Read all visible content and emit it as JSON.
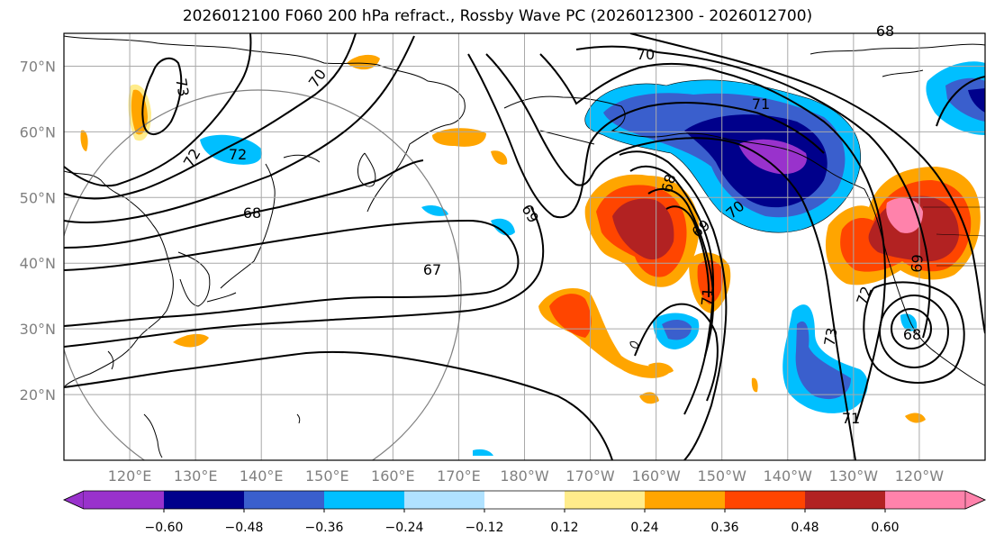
{
  "title": "2026012100 F060 200 hPa refract., Rossby Wave PC (2026012300 - 2026012700)",
  "lat_labels": [
    "70°N",
    "60°N",
    "50°N",
    "40°N",
    "30°N",
    "20°N"
  ],
  "lat_values": [
    70,
    60,
    50,
    40,
    30,
    20
  ],
  "lon_labels": [
    "120°E",
    "130°E",
    "140°E",
    "150°E",
    "160°E",
    "170°E",
    "180°W",
    "170°W",
    "160°W",
    "150°W",
    "140°W",
    "130°W",
    "120°W"
  ],
  "lon_values": [
    120,
    130,
    140,
    150,
    160,
    170,
    180,
    190,
    200,
    210,
    220,
    230,
    240
  ],
  "extent": {
    "lon_min": 110,
    "lon_max": 250,
    "lat_min": 10,
    "lat_max": 75
  },
  "colorbar": {
    "colors": [
      "#9932cc",
      "#00008b",
      "#3a5fcd",
      "#00bfff",
      "#b0e2ff",
      "#ffffff",
      "#ffec8b",
      "#ffa500",
      "#ff4500",
      "#b22222",
      "#ff82ab"
    ],
    "tick_labels": [
      "−0.60",
      "−0.48",
      "−0.36",
      "−0.24",
      "−0.12",
      "0.12",
      "0.24",
      "0.36",
      "0.48",
      "0.60"
    ]
  },
  "contour_labels": [
    "73",
    "70",
    "70",
    "72",
    "71",
    "72",
    "68",
    "67",
    "69",
    "68",
    "69",
    "70",
    "71",
    "72",
    "73",
    "69",
    "68",
    "71",
    "68"
  ],
  "legend_colors": {
    "contour": "#000000",
    "coast": "#000000",
    "grid": "#a9a9a9",
    "circle": "#808080"
  }
}
